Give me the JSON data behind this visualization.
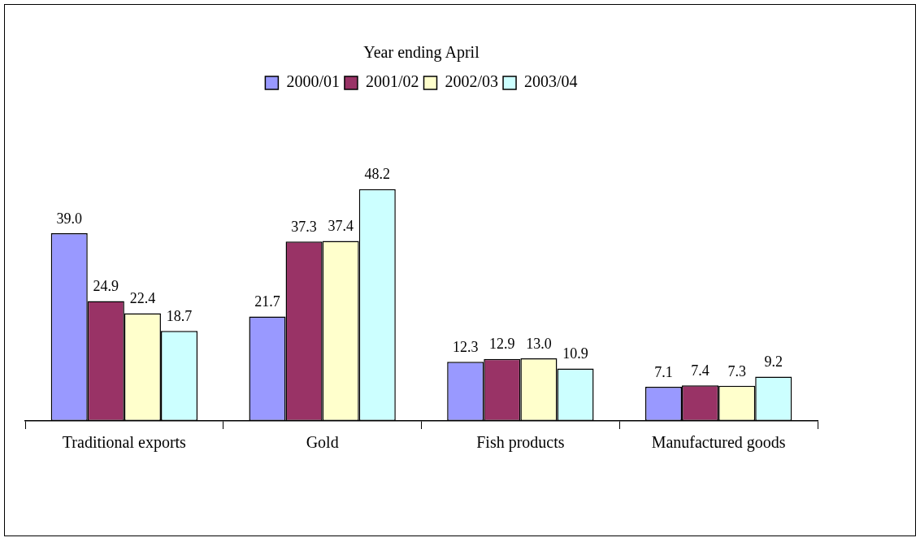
{
  "chart_data": {
    "type": "bar",
    "legend_title": "Year ending April",
    "legend": "top",
    "categories": [
      "Traditional exports",
      "Gold",
      "Fish products",
      "Manufactured goods"
    ],
    "grid": false,
    "series": [
      {
        "name": "2000/01",
        "color": "#9999ff",
        "values": [
          39.0,
          21.7,
          12.3,
          7.1
        ],
        "value_labels": [
          "39.0",
          "21.7",
          "12.3",
          "7.1"
        ]
      },
      {
        "name": "2001/02",
        "color": "#993366",
        "values": [
          24.9,
          37.3,
          12.9,
          7.4
        ],
        "value_labels": [
          "24.9",
          "37.3",
          "12.9",
          "7.4"
        ]
      },
      {
        "name": "2002/03",
        "color": "#ffffcc",
        "values": [
          22.4,
          37.4,
          13.0,
          7.3
        ],
        "value_labels": [
          "22.4",
          "37.4",
          "13.0",
          "7.3"
        ]
      },
      {
        "name": "2003/04",
        "color": "#ccffff",
        "values": [
          18.7,
          48.2,
          10.9,
          9.2
        ],
        "value_labels": [
          "18.7",
          "48.2",
          "10.9",
          "9.2"
        ]
      }
    ]
  }
}
